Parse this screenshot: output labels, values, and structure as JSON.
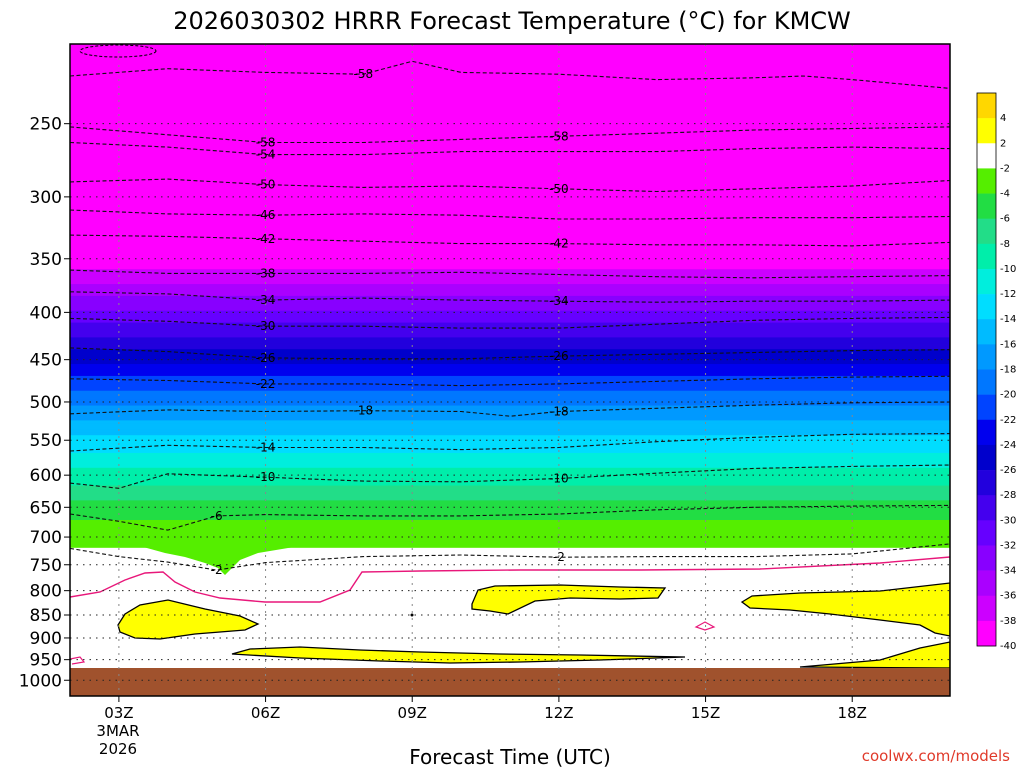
{
  "chart_data": {
    "type": "heatmap",
    "title": "2026030302 HRRR Forecast Temperature (°C) for KMCW",
    "xlabel": "Forecast Time (UTC)",
    "ylabel": "",
    "credit": "coolwx.com/models",
    "x_ticks": [
      "03Z",
      "06Z",
      "09Z",
      "12Z",
      "15Z",
      "18Z"
    ],
    "x_tick_hours": [
      3,
      6,
      9,
      12,
      15,
      18
    ],
    "x_range_hours": [
      2,
      20
    ],
    "x_date_lines": [
      "3MAR",
      "2026"
    ],
    "y_axis": {
      "scale": "log",
      "inverted": true,
      "range_hpa": [
        1040,
        205
      ]
    },
    "y_ticks": [
      250,
      300,
      350,
      400,
      450,
      500,
      550,
      600,
      650,
      700,
      750,
      800,
      850,
      900,
      950,
      1000
    ],
    "colorbar": {
      "labels": [
        "4",
        "2",
        "-2",
        "-4",
        "-6",
        "-8",
        "-10",
        "-12",
        "-14",
        "-16",
        "-18",
        "-20",
        "-22",
        "-24",
        "-26",
        "-28",
        "-30",
        "-32",
        "-34",
        "-36",
        "-38",
        "-40"
      ],
      "colors": [
        "#ffd700",
        "#ffff00",
        "#ffffff",
        "#55ee00",
        "#22dd44",
        "#22dd88",
        "#00eeaa",
        "#00eedd",
        "#00ddff",
        "#00bbff",
        "#0099ff",
        "#0077ff",
        "#0044ff",
        "#0000ee",
        "#0000cc",
        "#2200dd",
        "#4400ee",
        "#6600ff",
        "#8800ff",
        "#aa00ff",
        "#cc00ff",
        "#ff00ff"
      ]
    },
    "temperature_profile": [
      {
        "p": 205,
        "t": -60
      },
      {
        "p": 250,
        "t": -58
      },
      {
        "p": 270,
        "t": -54
      },
      {
        "p": 295,
        "t": -50
      },
      {
        "p": 315,
        "t": -46
      },
      {
        "p": 335,
        "t": -42
      },
      {
        "p": 360,
        "t": -38
      },
      {
        "p": 385,
        "t": -34
      },
      {
        "p": 410,
        "t": -30
      },
      {
        "p": 440,
        "t": -26
      },
      {
        "p": 470,
        "t": -22
      },
      {
        "p": 505,
        "t": -18
      },
      {
        "p": 545,
        "t": -14
      },
      {
        "p": 590,
        "t": -10
      },
      {
        "p": 640,
        "t": -6
      },
      {
        "p": 695,
        "t": -3
      },
      {
        "p": 720,
        "t": -2
      },
      {
        "p": 790,
        "t": -1
      },
      {
        "p": 900,
        "t": 0
      },
      {
        "p": 960,
        "t": 1
      },
      {
        "p": 1040,
        "t": 1
      }
    ],
    "contours": [
      {
        "label": "-58",
        "points": [
          [
            2,
            222
          ],
          [
            4,
            218
          ],
          [
            6,
            220
          ],
          [
            8,
            221
          ],
          [
            9,
            214
          ],
          [
            10,
            220
          ],
          [
            12,
            221
          ],
          [
            14,
            224
          ],
          [
            16,
            223
          ],
          [
            17,
            222
          ],
          [
            18,
            224
          ],
          [
            20,
            229
          ]
        ]
      },
      {
        "label": "-58",
        "points": [
          [
            2,
            252
          ],
          [
            4,
            257
          ],
          [
            6,
            262
          ],
          [
            8,
            262
          ],
          [
            10,
            260
          ],
          [
            12,
            258
          ],
          [
            14,
            256
          ],
          [
            16,
            254
          ],
          [
            18,
            253
          ],
          [
            20,
            252
          ]
        ]
      },
      {
        "label": "-54",
        "points": [
          [
            2,
            262
          ],
          [
            4,
            265
          ],
          [
            6,
            270
          ],
          [
            8,
            270
          ],
          [
            10,
            268
          ],
          [
            12,
            268
          ],
          [
            14,
            268
          ],
          [
            16,
            266
          ],
          [
            18,
            265
          ],
          [
            20,
            266
          ]
        ]
      },
      {
        "label": "-50",
        "points": [
          [
            2,
            289
          ],
          [
            4,
            287
          ],
          [
            6,
            291
          ],
          [
            8,
            293
          ],
          [
            10,
            292
          ],
          [
            12,
            294
          ],
          [
            14,
            296
          ],
          [
            16,
            294
          ],
          [
            18,
            292
          ],
          [
            20,
            288
          ]
        ]
      },
      {
        "label": "-46",
        "points": [
          [
            2,
            310
          ],
          [
            4,
            313
          ],
          [
            6,
            314
          ],
          [
            8,
            313
          ],
          [
            10,
            314
          ],
          [
            12,
            317
          ],
          [
            14,
            317
          ],
          [
            16,
            316
          ],
          [
            18,
            316
          ],
          [
            20,
            315
          ]
        ]
      },
      {
        "label": "-42",
        "points": [
          [
            2,
            330
          ],
          [
            4,
            331
          ],
          [
            6,
            333
          ],
          [
            8,
            335
          ],
          [
            10,
            337
          ],
          [
            12,
            337
          ],
          [
            14,
            338
          ],
          [
            16,
            338
          ],
          [
            18,
            339
          ],
          [
            20,
            336
          ]
        ]
      },
      {
        "label": "-38",
        "points": [
          [
            2,
            360
          ],
          [
            4,
            363
          ],
          [
            6,
            363
          ],
          [
            8,
            363
          ],
          [
            10,
            362
          ],
          [
            12,
            364
          ],
          [
            14,
            366
          ],
          [
            16,
            367
          ],
          [
            18,
            366
          ],
          [
            20,
            365
          ]
        ]
      },
      {
        "label": "-34",
        "points": [
          [
            2,
            380
          ],
          [
            4,
            382
          ],
          [
            6,
            388
          ],
          [
            8,
            386
          ],
          [
            10,
            388
          ],
          [
            12,
            389
          ],
          [
            14,
            390
          ],
          [
            16,
            389
          ],
          [
            18,
            389
          ],
          [
            20,
            388
          ]
        ]
      },
      {
        "label": "-30",
        "points": [
          [
            2,
            406
          ],
          [
            4,
            409
          ],
          [
            6,
            414
          ],
          [
            8,
            414
          ],
          [
            10,
            416
          ],
          [
            12,
            416
          ],
          [
            14,
            412
          ],
          [
            16,
            408
          ],
          [
            18,
            406
          ],
          [
            20,
            405
          ]
        ]
      },
      {
        "label": "-26",
        "points": [
          [
            2,
            437
          ],
          [
            4,
            441
          ],
          [
            6,
            448
          ],
          [
            8,
            449
          ],
          [
            10,
            449
          ],
          [
            12,
            446
          ],
          [
            14,
            444
          ],
          [
            16,
            442
          ],
          [
            18,
            440
          ],
          [
            20,
            439
          ]
        ]
      },
      {
        "label": "-22",
        "points": [
          [
            2,
            472
          ],
          [
            4,
            474
          ],
          [
            6,
            478
          ],
          [
            8,
            478
          ],
          [
            10,
            480
          ],
          [
            12,
            478
          ],
          [
            14,
            475
          ],
          [
            16,
            472
          ],
          [
            18,
            470
          ],
          [
            20,
            469
          ]
        ]
      },
      {
        "label": "-18",
        "points": [
          [
            2,
            515
          ],
          [
            4,
            510
          ],
          [
            6,
            512
          ],
          [
            8,
            511
          ],
          [
            10,
            512
          ],
          [
            11,
            518
          ],
          [
            12,
            512
          ],
          [
            14,
            508
          ],
          [
            16,
            504
          ],
          [
            18,
            501
          ],
          [
            20,
            500
          ]
        ]
      },
      {
        "label": "-14",
        "points": [
          [
            2,
            565
          ],
          [
            4,
            557
          ],
          [
            6,
            560
          ],
          [
            8,
            560
          ],
          [
            10,
            563
          ],
          [
            12,
            560
          ],
          [
            14,
            552
          ],
          [
            16,
            546
          ],
          [
            18,
            542
          ],
          [
            20,
            541
          ]
        ]
      },
      {
        "label": "-10",
        "points": [
          [
            2,
            612
          ],
          [
            3,
            620
          ],
          [
            4,
            598
          ],
          [
            6,
            603
          ],
          [
            8,
            609
          ],
          [
            10,
            610
          ],
          [
            12,
            605
          ],
          [
            14,
            597
          ],
          [
            16,
            590
          ],
          [
            18,
            587
          ],
          [
            20,
            585
          ]
        ]
      },
      {
        "label": "-6",
        "points": [
          [
            2,
            661
          ],
          [
            3,
            673
          ],
          [
            4,
            688
          ],
          [
            5,
            664
          ],
          [
            6,
            662
          ],
          [
            8,
            664
          ],
          [
            10,
            664
          ],
          [
            12,
            661
          ],
          [
            14,
            654
          ],
          [
            16,
            650
          ],
          [
            18,
            648
          ],
          [
            20,
            647
          ]
        ]
      },
      {
        "label": "-2",
        "points": [
          [
            2,
            720
          ],
          [
            3,
            735
          ],
          [
            4,
            745
          ],
          [
            5,
            760
          ],
          [
            6,
            746
          ],
          [
            8,
            735
          ],
          [
            10,
            732
          ],
          [
            12,
            736
          ],
          [
            14,
            735
          ],
          [
            16,
            735
          ],
          [
            18,
            730
          ],
          [
            20,
            712
          ]
        ]
      }
    ]
  }
}
